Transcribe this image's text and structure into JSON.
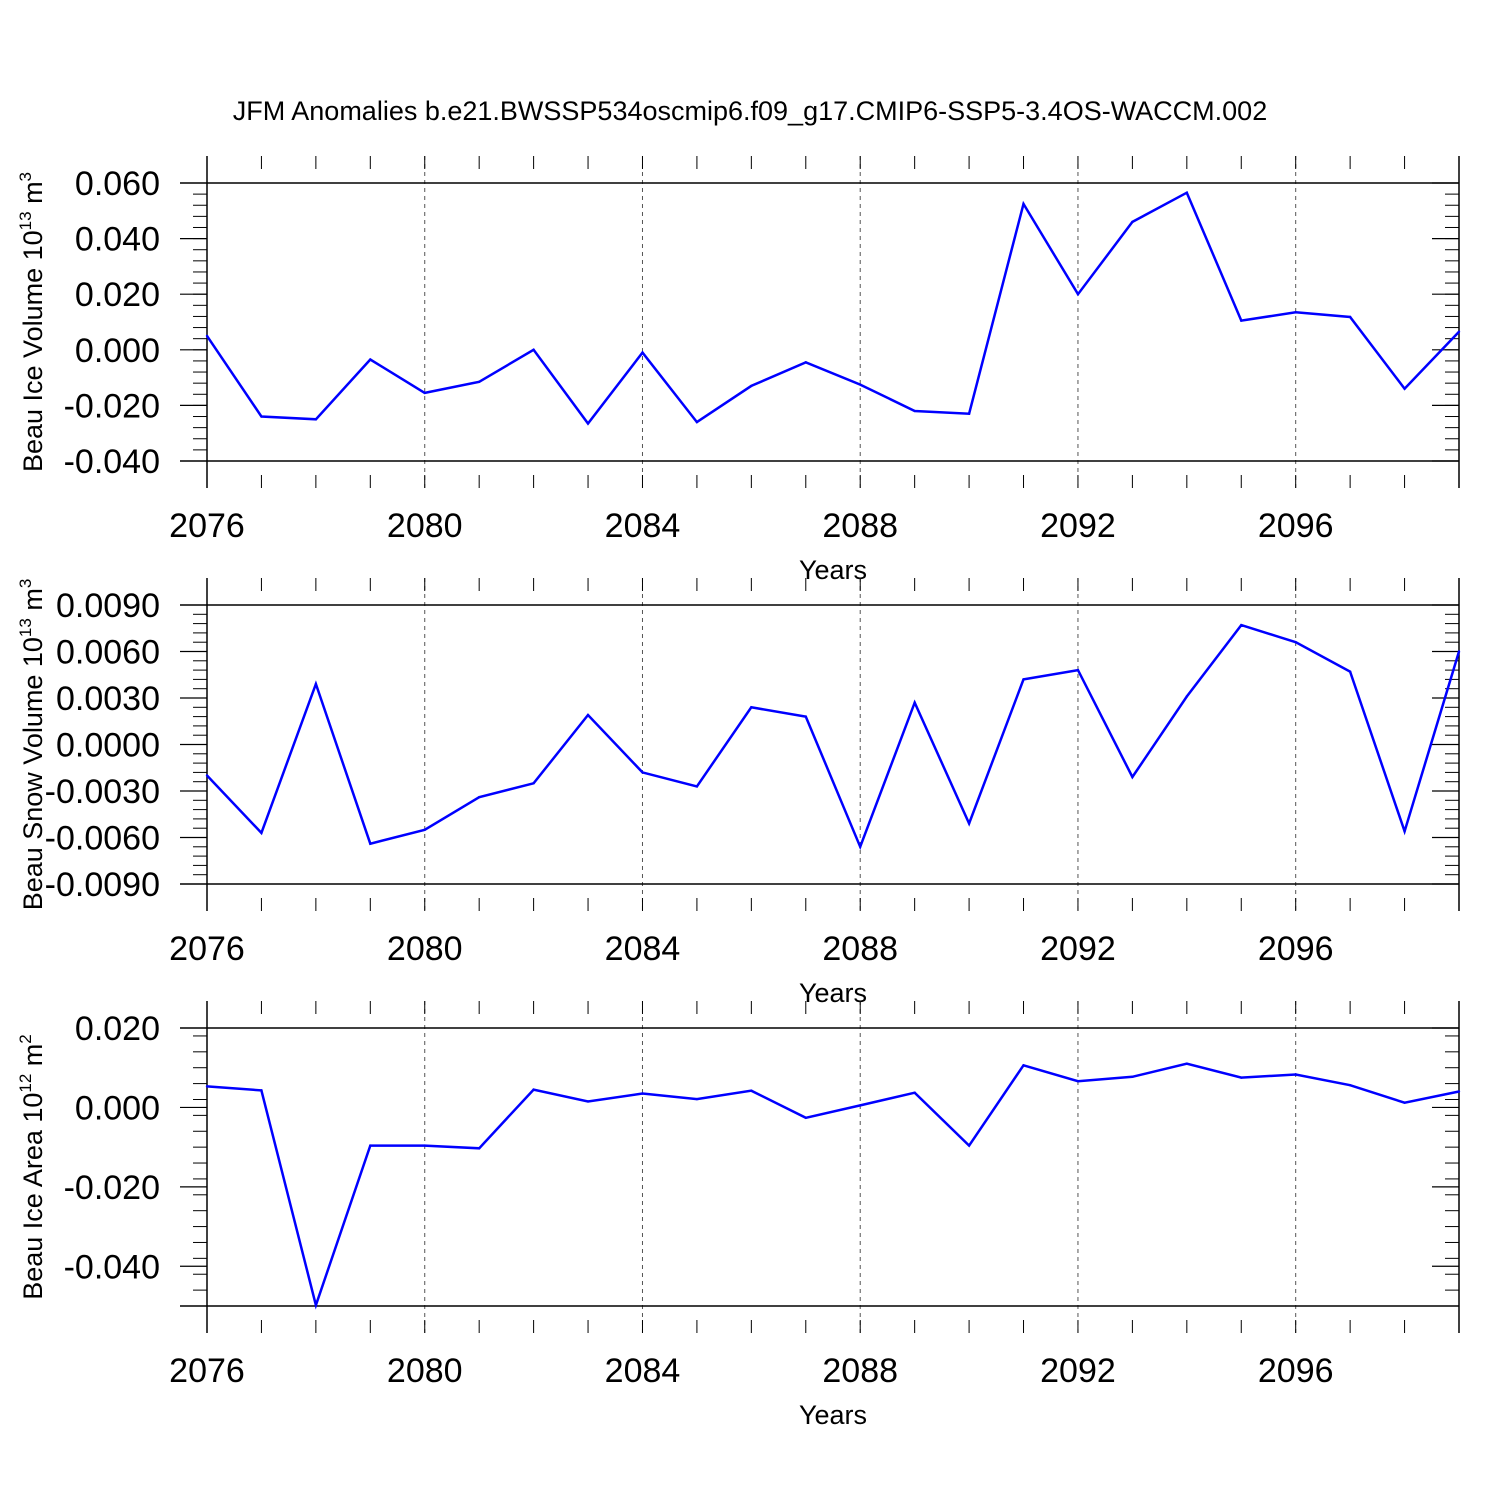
{
  "title": "JFM Anomalies b.e21.BWSSP534oscmip6.f09_g17.CMIP6-SSP5-3.4OS-WACCM.002",
  "colors": {
    "series": "#0000ff",
    "axis": "#000000",
    "grid": "#555555"
  },
  "chart_data": [
    {
      "type": "line",
      "ylabel": "Beau Ice Volume 10",
      "ylabel_exp": "13",
      "ylabel_unit": " m",
      "ylabel_unit_exp": "3",
      "xlabel": "Years",
      "xlim": [
        2076,
        2099
      ],
      "ylim": [
        -0.04,
        0.06
      ],
      "yticks": [
        0.06,
        0.04,
        0.02,
        0.0,
        -0.02,
        -0.04
      ],
      "ytick_labels": [
        "0.060",
        "0.040",
        "0.020",
        "0.000",
        "-0.020",
        "-0.040"
      ],
      "xticks": [
        2076,
        2080,
        2084,
        2088,
        2092,
        2096
      ],
      "xtick_labels": [
        "2076",
        "2080",
        "2084",
        "2088",
        "2092",
        "2096"
      ],
      "x": [
        2076,
        2077,
        2078,
        2079,
        2080,
        2081,
        2082,
        2083,
        2084,
        2085,
        2086,
        2087,
        2088,
        2089,
        2090,
        2091,
        2092,
        2093,
        2094,
        2095,
        2096,
        2097,
        2098,
        2099
      ],
      "y": [
        0.005,
        -0.024,
        -0.025,
        -0.0035,
        -0.0155,
        -0.0115,
        0.0,
        -0.0265,
        -0.001,
        -0.026,
        -0.013,
        -0.0045,
        -0.0125,
        -0.022,
        -0.023,
        0.0525,
        0.02,
        0.046,
        0.0565,
        0.0105,
        0.0135,
        0.0118,
        -0.014,
        0.0065
      ]
    },
    {
      "type": "line",
      "ylabel": "Beau Snow Volume 10",
      "ylabel_exp": "13",
      "ylabel_unit": " m",
      "ylabel_unit_exp": "3",
      "xlabel": "Years",
      "xlim": [
        2076,
        2099
      ],
      "ylim": [
        -0.009,
        0.009
      ],
      "yticks": [
        0.009,
        0.006,
        0.003,
        0.0,
        -0.003,
        -0.006,
        -0.009
      ],
      "ytick_labels": [
        "0.0090",
        "0.0060",
        "0.0030",
        "0.0000",
        "-0.0030",
        "-0.0060",
        "-0.0090"
      ],
      "xticks": [
        2076,
        2080,
        2084,
        2088,
        2092,
        2096
      ],
      "xtick_labels": [
        "2076",
        "2080",
        "2084",
        "2088",
        "2092",
        "2096"
      ],
      "x": [
        2076,
        2077,
        2078,
        2079,
        2080,
        2081,
        2082,
        2083,
        2084,
        2085,
        2086,
        2087,
        2088,
        2089,
        2090,
        2091,
        2092,
        2093,
        2094,
        2095,
        2096,
        2097,
        2098,
        2099
      ],
      "y": [
        -0.002,
        -0.0057,
        0.0039,
        -0.0064,
        -0.0055,
        -0.0034,
        -0.0025,
        0.0019,
        -0.0018,
        -0.0027,
        0.0024,
        0.0018,
        -0.0066,
        0.0027,
        -0.0051,
        0.0042,
        0.0048,
        -0.0021,
        0.0031,
        0.0077,
        0.0066,
        0.0047,
        -0.0056,
        0.006
      ]
    },
    {
      "type": "line",
      "ylabel": "Beau Ice Area 10",
      "ylabel_exp": "12",
      "ylabel_unit": " m",
      "ylabel_unit_exp": "2",
      "xlabel": "Years",
      "xlim": [
        2076,
        2099
      ],
      "ylim": [
        -0.05,
        0.02
      ],
      "yticks": [
        0.02,
        0.0,
        -0.02,
        -0.04
      ],
      "ytick_labels": [
        "0.020",
        "0.000",
        "-0.020",
        "-0.040"
      ],
      "xticks": [
        2076,
        2080,
        2084,
        2088,
        2092,
        2096
      ],
      "xtick_labels": [
        "2076",
        "2080",
        "2084",
        "2088",
        "2092",
        "2096"
      ],
      "x": [
        2076,
        2077,
        2078,
        2079,
        2080,
        2081,
        2082,
        2083,
        2084,
        2085,
        2086,
        2087,
        2088,
        2089,
        2090,
        2091,
        2092,
        2093,
        2094,
        2095,
        2096,
        2097,
        2098,
        2099
      ],
      "y": [
        0.0053,
        0.0043,
        -0.0498,
        -0.0096,
        -0.0096,
        -0.0103,
        0.0045,
        0.0015,
        0.0035,
        0.0021,
        0.0042,
        -0.0026,
        0.0005,
        0.0037,
        -0.0096,
        0.0106,
        0.0066,
        0.0077,
        0.011,
        0.0075,
        0.0083,
        0.0056,
        0.0012,
        0.004
      ]
    }
  ]
}
